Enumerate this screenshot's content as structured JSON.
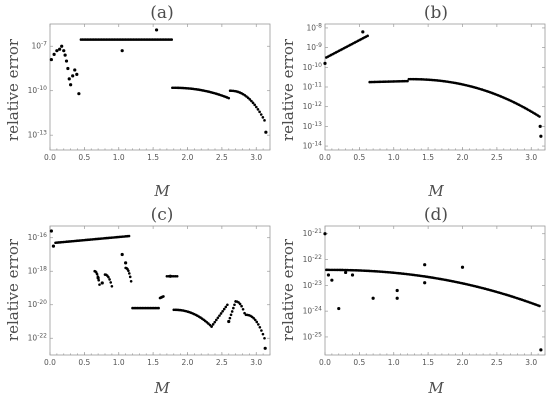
{
  "chart_data": [
    {
      "type": "scatter",
      "title": "(a)",
      "xlabel": "M",
      "ylabel": "relative error",
      "xlim": [
        0,
        3.2
      ],
      "ylim_log10": [
        -14,
        -5.5
      ],
      "log_y": true,
      "xticks": [
        0.0,
        0.5,
        1.0,
        1.5,
        2.0,
        2.5,
        3.0
      ],
      "xtick_labels": [
        "0.0",
        "0.5",
        "1.0",
        "1.5",
        "2.0",
        "2.5",
        "3.0"
      ],
      "yticks_log10": [
        -13,
        -10,
        -7
      ],
      "ytick_labels": [
        "10^-13",
        "10^-10",
        "10^-7"
      ],
      "points": [
        [
          0.02,
          -7.9
        ],
        [
          0.06,
          -7.55
        ],
        [
          0.1,
          -7.3
        ],
        [
          0.14,
          -7.2
        ],
        [
          0.17,
          -7.0
        ],
        [
          0.2,
          -7.3
        ],
        [
          0.22,
          -7.6
        ],
        [
          0.24,
          -8.0
        ],
        [
          0.26,
          -8.5
        ],
        [
          0.28,
          -9.2
        ],
        [
          0.3,
          -9.6
        ],
        [
          0.33,
          -9.0
        ],
        [
          0.36,
          -8.6
        ],
        [
          0.39,
          -8.9
        ],
        [
          0.42,
          -10.2
        ],
        [
          1.05,
          -7.3
        ],
        [
          1.55,
          -5.9
        ],
        [
          3.14,
          -12.8
        ]
      ],
      "series_segments": [
        {
          "x": [
            0.45,
            1.77
          ],
          "y": [
            -6.55,
            -6.55
          ]
        },
        {
          "x": [
            1.78,
            2.6
          ],
          "y": [
            -9.8,
            -10.5
          ]
        },
        {
          "x": [
            2.62,
            3.12
          ],
          "y": [
            -10.0,
            -12.0
          ]
        }
      ]
    },
    {
      "type": "scatter",
      "title": "(b)",
      "xlabel": "M",
      "ylabel": "relative error",
      "xlim": [
        0,
        3.2
      ],
      "ylim_log10": [
        -14.2,
        -7.8
      ],
      "log_y": true,
      "xticks": [
        0.0,
        0.5,
        1.0,
        1.5,
        2.0,
        2.5,
        3.0
      ],
      "xtick_labels": [
        "0.0",
        "0.5",
        "1.0",
        "1.5",
        "2.0",
        "2.5",
        "3.0"
      ],
      "yticks_log10": [
        -14,
        -13,
        -12,
        -11,
        -10,
        -9,
        -8
      ],
      "ytick_labels": [
        "10^-14",
        "10^-13",
        "10^-12",
        "10^-11",
        "10^-10",
        "10^-9",
        "10^-8"
      ],
      "points": [
        [
          0.0,
          -9.8
        ],
        [
          0.55,
          -8.2
        ],
        [
          3.13,
          -13.0
        ],
        [
          3.14,
          -13.5
        ]
      ],
      "series_segments": [
        {
          "x": [
            0.02,
            0.62
          ],
          "y": [
            -9.5,
            -8.4
          ]
        },
        {
          "x": [
            0.65,
            1.2
          ],
          "y": [
            -10.75,
            -10.7
          ]
        },
        {
          "x": [
            1.22,
            3.12
          ],
          "y": [
            -10.6,
            -12.5
          ]
        }
      ]
    },
    {
      "type": "scatter",
      "title": "(c)",
      "xlabel": "M",
      "ylabel": "relative error",
      "xlim": [
        0,
        3.2
      ],
      "ylim_log10": [
        -23,
        -15.3
      ],
      "log_y": true,
      "xticks": [
        0.0,
        0.5,
        1.0,
        1.5,
        2.0,
        2.5,
        3.0
      ],
      "xtick_labels": [
        "0.0",
        "0.5",
        "1.0",
        "1.5",
        "2.0",
        "2.5",
        "3.0"
      ],
      "yticks_log10": [
        -22,
        -20,
        -18,
        -16
      ],
      "ytick_labels": [
        "10^-22",
        "10^-20",
        "10^-18",
        "10^-16"
      ],
      "points": [
        [
          0.02,
          -15.6
        ],
        [
          0.05,
          -16.5
        ],
        [
          0.7,
          -18.4
        ],
        [
          0.76,
          -18.7
        ],
        [
          1.05,
          -17.0
        ],
        [
          1.1,
          -17.5
        ],
        [
          1.75,
          -18.3
        ],
        [
          2.6,
          -21.0
        ],
        [
          3.13,
          -22.6
        ]
      ],
      "series_segments": [
        {
          "x": [
            0.08,
            1.15
          ],
          "y": [
            -16.3,
            -15.9
          ]
        },
        {
          "x": [
            0.65,
            0.72
          ],
          "y": [
            -18.0,
            -18.8
          ]
        },
        {
          "x": [
            0.8,
            0.9
          ],
          "y": [
            -18.2,
            -18.9
          ]
        },
        {
          "x": [
            1.1,
            1.18
          ],
          "y": [
            -17.8,
            -18.6
          ]
        },
        {
          "x": [
            1.2,
            1.58
          ],
          "y": [
            -20.2,
            -20.2
          ]
        },
        {
          "x": [
            1.6,
            1.65
          ],
          "y": [
            -19.6,
            -19.5
          ]
        },
        {
          "x": [
            1.7,
            1.85
          ],
          "y": [
            -18.3,
            -18.3
          ]
        },
        {
          "x": [
            1.8,
            2.35
          ],
          "y": [
            -20.3,
            -21.3
          ]
        },
        {
          "x": [
            2.35,
            2.58
          ],
          "y": [
            -21.3,
            -20.0
          ]
        },
        {
          "x": [
            2.6,
            2.7
          ],
          "y": [
            -21.0,
            -19.8
          ]
        },
        {
          "x": [
            2.7,
            2.83
          ],
          "y": [
            -19.8,
            -20.5
          ]
        },
        {
          "x": [
            2.85,
            3.12
          ],
          "y": [
            -20.6,
            -22.0
          ]
        }
      ]
    },
    {
      "type": "scatter",
      "title": "(d)",
      "xlabel": "M",
      "ylabel": "relative error",
      "xlim": [
        0,
        3.2
      ],
      "ylim_log10": [
        -25.7,
        -20.7
      ],
      "log_y": true,
      "xticks": [
        0.0,
        0.5,
        1.0,
        1.5,
        2.0,
        2.5,
        3.0
      ],
      "xtick_labels": [
        "0.0",
        "0.5",
        "1.0",
        "1.5",
        "2.0",
        "2.5",
        "3.0"
      ],
      "yticks_log10": [
        -25,
        -24,
        -23,
        -22,
        -21
      ],
      "ytick_labels": [
        "10^-25",
        "10^-24",
        "10^-23",
        "10^-22",
        "10^-21"
      ],
      "points": [
        [
          0.0,
          -21.0
        ],
        [
          0.05,
          -22.6
        ],
        [
          0.1,
          -22.8
        ],
        [
          0.2,
          -23.9
        ],
        [
          0.3,
          -22.5
        ],
        [
          0.4,
          -22.6
        ],
        [
          0.7,
          -23.5
        ],
        [
          1.05,
          -23.2
        ],
        [
          1.05,
          -23.5
        ],
        [
          1.45,
          -22.2
        ],
        [
          1.45,
          -22.9
        ],
        [
          2.0,
          -22.3
        ],
        [
          3.14,
          -25.5
        ]
      ],
      "series_segments": [
        {
          "x": [
            0.02,
            3.12
          ],
          "y": [
            -22.4,
            -23.8
          ]
        }
      ]
    }
  ]
}
